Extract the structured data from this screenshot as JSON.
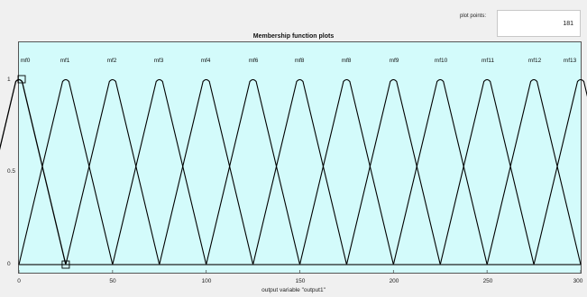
{
  "plot_points": {
    "label": "plot points:",
    "value": "181"
  },
  "title": "Membership function plots",
  "xlabel": "output variable \"output1\"",
  "y_ticks": [
    "1",
    "0.5",
    "0"
  ],
  "x_ticks": [
    "0",
    "50",
    "100",
    "150",
    "200",
    "250",
    "300"
  ],
  "mf_labels": [
    "mf0",
    "mf1",
    "mf2",
    "mf3",
    "mf4",
    "mf6",
    "mf8",
    "mf8",
    "mf9",
    "mf10",
    "mf11",
    "mf12",
    "mf13"
  ],
  "chart_data": {
    "type": "line",
    "xlim": [
      0,
      300
    ],
    "ylim": [
      0,
      1
    ],
    "centers": [
      0,
      25,
      50,
      75,
      100,
      125,
      150,
      175,
      200,
      225,
      250,
      275,
      300
    ],
    "half_width": 25,
    "shape": "triangular",
    "selected_index": 0,
    "colors": {
      "background": "#d3fbfb",
      "line": "#000000",
      "grid": "#c8c8c8"
    }
  }
}
